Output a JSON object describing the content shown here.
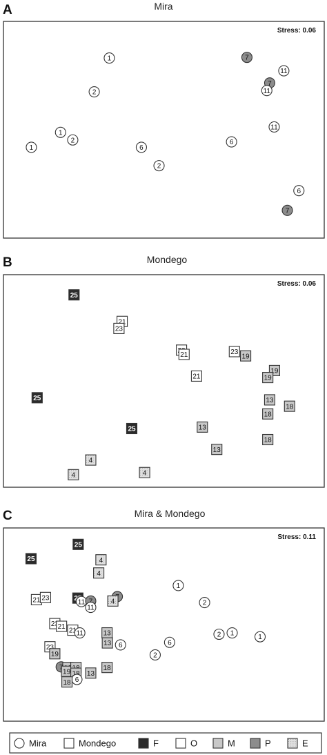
{
  "colors": {
    "F": "#2b2b2b",
    "O": "#ffffff",
    "M": "#c8c8c8",
    "P": "#8c8c8c",
    "E": "#e0e0e0",
    "stroke": "#333333"
  },
  "legend": {
    "items": [
      {
        "shape": "circle",
        "fill": "O",
        "label": "Mira"
      },
      {
        "shape": "square",
        "fill": "O",
        "label": "Mondego"
      },
      {
        "shape": "square",
        "fill": "F",
        "label": "F"
      },
      {
        "shape": "square",
        "fill": "O",
        "label": "O"
      },
      {
        "shape": "square",
        "fill": "M",
        "label": "M"
      },
      {
        "shape": "square",
        "fill": "P",
        "label": "P"
      },
      {
        "shape": "square",
        "fill": "E",
        "label": "E"
      }
    ]
  },
  "chart_data": [
    {
      "type": "scatter",
      "panel_letter": "A",
      "title": "Mira",
      "stress": "Stress: 0.06",
      "xlim": [
        0,
        100
      ],
      "ylim": [
        0,
        100
      ],
      "points": [
        {
          "x": 33.0,
          "y": 83.1,
          "label": "1",
          "shape": "circle",
          "fill": "O"
        },
        {
          "x": 28.3,
          "y": 67.5,
          "label": "2",
          "shape": "circle",
          "fill": "O"
        },
        {
          "x": 17.8,
          "y": 48.8,
          "label": "1",
          "shape": "circle",
          "fill": "O"
        },
        {
          "x": 21.6,
          "y": 45.3,
          "label": "2",
          "shape": "circle",
          "fill": "O"
        },
        {
          "x": 8.7,
          "y": 41.9,
          "label": "1",
          "shape": "circle",
          "fill": "O"
        },
        {
          "x": 43.0,
          "y": 41.9,
          "label": "6",
          "shape": "circle",
          "fill": "O"
        },
        {
          "x": 48.5,
          "y": 33.4,
          "label": "2",
          "shape": "circle",
          "fill": "O"
        },
        {
          "x": 71.1,
          "y": 44.4,
          "label": "6",
          "shape": "circle",
          "fill": "O"
        },
        {
          "x": 75.9,
          "y": 83.4,
          "label": "7",
          "shape": "circle",
          "fill": "P"
        },
        {
          "x": 87.4,
          "y": 77.2,
          "label": "11",
          "shape": "circle",
          "fill": "O"
        },
        {
          "x": 83.0,
          "y": 71.6,
          "label": "7",
          "shape": "circle",
          "fill": "P"
        },
        {
          "x": 82.1,
          "y": 68.1,
          "label": "11",
          "shape": "circle",
          "fill": "O"
        },
        {
          "x": 84.4,
          "y": 51.3,
          "label": "11",
          "shape": "circle",
          "fill": "O"
        },
        {
          "x": 92.1,
          "y": 21.9,
          "label": "6",
          "shape": "circle",
          "fill": "O"
        },
        {
          "x": 88.5,
          "y": 12.8,
          "label": "7",
          "shape": "circle",
          "fill": "P"
        }
      ]
    },
    {
      "type": "scatter",
      "panel_letter": "B",
      "title": "Mondego",
      "stress": "Stress: 0.06",
      "xlim": [
        0,
        100
      ],
      "ylim": [
        0,
        100
      ],
      "points": [
        {
          "x": 22.0,
          "y": 90.5,
          "label": "25",
          "shape": "square",
          "fill": "F"
        },
        {
          "x": 37.0,
          "y": 78.0,
          "label": "21",
          "shape": "square",
          "fill": "O"
        },
        {
          "x": 36.0,
          "y": 74.7,
          "label": "23",
          "shape": "square",
          "fill": "O"
        },
        {
          "x": 55.5,
          "y": 64.5,
          "label": "23",
          "shape": "square",
          "fill": "O"
        },
        {
          "x": 56.3,
          "y": 62.5,
          "label": "21",
          "shape": "square",
          "fill": "O"
        },
        {
          "x": 72.0,
          "y": 63.8,
          "label": "23",
          "shape": "square",
          "fill": "O"
        },
        {
          "x": 75.5,
          "y": 61.8,
          "label": "19",
          "shape": "square",
          "fill": "M"
        },
        {
          "x": 84.5,
          "y": 54.9,
          "label": "19",
          "shape": "square",
          "fill": "M"
        },
        {
          "x": 82.4,
          "y": 51.6,
          "label": "19",
          "shape": "square",
          "fill": "M"
        },
        {
          "x": 60.2,
          "y": 52.3,
          "label": "21",
          "shape": "square",
          "fill": "O"
        },
        {
          "x": 10.5,
          "y": 42.1,
          "label": "25",
          "shape": "square",
          "fill": "F"
        },
        {
          "x": 83.0,
          "y": 41.1,
          "label": "13",
          "shape": "square",
          "fill": "M"
        },
        {
          "x": 89.2,
          "y": 38.1,
          "label": "18",
          "shape": "square",
          "fill": "M"
        },
        {
          "x": 82.4,
          "y": 34.5,
          "label": "18",
          "shape": "square",
          "fill": "M"
        },
        {
          "x": 40.0,
          "y": 27.6,
          "label": "25",
          "shape": "square",
          "fill": "F"
        },
        {
          "x": 62.0,
          "y": 28.3,
          "label": "13",
          "shape": "square",
          "fill": "M"
        },
        {
          "x": 66.5,
          "y": 17.8,
          "label": "13",
          "shape": "square",
          "fill": "M"
        },
        {
          "x": 82.4,
          "y": 22.4,
          "label": "18",
          "shape": "square",
          "fill": "M"
        },
        {
          "x": 27.2,
          "y": 12.8,
          "label": "4",
          "shape": "square",
          "fill": "E"
        },
        {
          "x": 21.8,
          "y": 5.9,
          "label": "4",
          "shape": "square",
          "fill": "E"
        },
        {
          "x": 44.0,
          "y": 6.9,
          "label": "4",
          "shape": "square",
          "fill": "E"
        }
      ]
    },
    {
      "type": "scatter",
      "panel_letter": "C",
      "title": "Mira & Mondego",
      "stress": "Stress: 0.11",
      "xlim": [
        0,
        100
      ],
      "ylim": [
        0,
        100
      ],
      "points": [
        {
          "x": 23.3,
          "y": 91.5,
          "label": "25",
          "shape": "square",
          "fill": "F"
        },
        {
          "x": 8.6,
          "y": 84.1,
          "label": "25",
          "shape": "square",
          "fill": "F"
        },
        {
          "x": 30.4,
          "y": 83.5,
          "label": "4",
          "shape": "square",
          "fill": "E"
        },
        {
          "x": 29.7,
          "y": 76.7,
          "label": "4",
          "shape": "square",
          "fill": "E"
        },
        {
          "x": 54.5,
          "y": 70.2,
          "label": "1",
          "shape": "circle",
          "fill": "O"
        },
        {
          "x": 10.3,
          "y": 62.9,
          "label": "21",
          "shape": "square",
          "fill": "O"
        },
        {
          "x": 13.1,
          "y": 64.0,
          "label": "23",
          "shape": "square",
          "fill": "O"
        },
        {
          "x": 23.2,
          "y": 63.7,
          "label": "25",
          "shape": "square",
          "fill": "F"
        },
        {
          "x": 24.3,
          "y": 61.9,
          "label": "11",
          "shape": "circle",
          "fill": "O"
        },
        {
          "x": 27.2,
          "y": 62.2,
          "label": "7",
          "shape": "circle",
          "fill": "P"
        },
        {
          "x": 27.2,
          "y": 58.9,
          "label": "11",
          "shape": "circle",
          "fill": "O"
        },
        {
          "x": 35.5,
          "y": 64.5,
          "label": "7",
          "shape": "circle",
          "fill": "P"
        },
        {
          "x": 34.1,
          "y": 62.2,
          "label": "4",
          "shape": "square",
          "fill": "E"
        },
        {
          "x": 62.7,
          "y": 61.4,
          "label": "2",
          "shape": "circle",
          "fill": "O"
        },
        {
          "x": 16.0,
          "y": 50.5,
          "label": "23",
          "shape": "square",
          "fill": "O"
        },
        {
          "x": 18.1,
          "y": 49.1,
          "label": "21",
          "shape": "square",
          "fill": "O"
        },
        {
          "x": 21.6,
          "y": 47.1,
          "label": "21",
          "shape": "square",
          "fill": "O"
        },
        {
          "x": 23.8,
          "y": 45.7,
          "label": "11",
          "shape": "circle",
          "fill": "O"
        },
        {
          "x": 32.3,
          "y": 45.7,
          "label": "13",
          "shape": "square",
          "fill": "M"
        },
        {
          "x": 32.4,
          "y": 40.5,
          "label": "13",
          "shape": "square",
          "fill": "M"
        },
        {
          "x": 36.5,
          "y": 39.5,
          "label": "6",
          "shape": "circle",
          "fill": "O"
        },
        {
          "x": 51.8,
          "y": 40.8,
          "label": "6",
          "shape": "circle",
          "fill": "O"
        },
        {
          "x": 67.2,
          "y": 45.0,
          "label": "2",
          "shape": "circle",
          "fill": "O"
        },
        {
          "x": 71.3,
          "y": 45.7,
          "label": "1",
          "shape": "circle",
          "fill": "O"
        },
        {
          "x": 80.0,
          "y": 43.7,
          "label": "1",
          "shape": "circle",
          "fill": "O"
        },
        {
          "x": 14.5,
          "y": 38.5,
          "label": "23",
          "shape": "square",
          "fill": "O"
        },
        {
          "x": 16.0,
          "y": 34.9,
          "label": "19",
          "shape": "square",
          "fill": "M"
        },
        {
          "x": 47.3,
          "y": 34.3,
          "label": "2",
          "shape": "circle",
          "fill": "O"
        },
        {
          "x": 18.0,
          "y": 28.1,
          "label": "7",
          "shape": "circle",
          "fill": "P"
        },
        {
          "x": 20.1,
          "y": 27.8,
          "label": "19",
          "shape": "square",
          "fill": "M"
        },
        {
          "x": 19.7,
          "y": 25.8,
          "label": "19",
          "shape": "square",
          "fill": "M"
        },
        {
          "x": 22.6,
          "y": 27.8,
          "label": "18",
          "shape": "square",
          "fill": "M"
        },
        {
          "x": 22.6,
          "y": 24.8,
          "label": "18",
          "shape": "square",
          "fill": "M"
        },
        {
          "x": 32.3,
          "y": 27.8,
          "label": "18",
          "shape": "square",
          "fill": "M"
        },
        {
          "x": 27.2,
          "y": 24.9,
          "label": "13",
          "shape": "square",
          "fill": "M"
        },
        {
          "x": 22.9,
          "y": 21.6,
          "label": "6",
          "shape": "circle",
          "fill": "O"
        },
        {
          "x": 19.8,
          "y": 20.3,
          "label": "18",
          "shape": "square",
          "fill": "M"
        }
      ]
    }
  ]
}
